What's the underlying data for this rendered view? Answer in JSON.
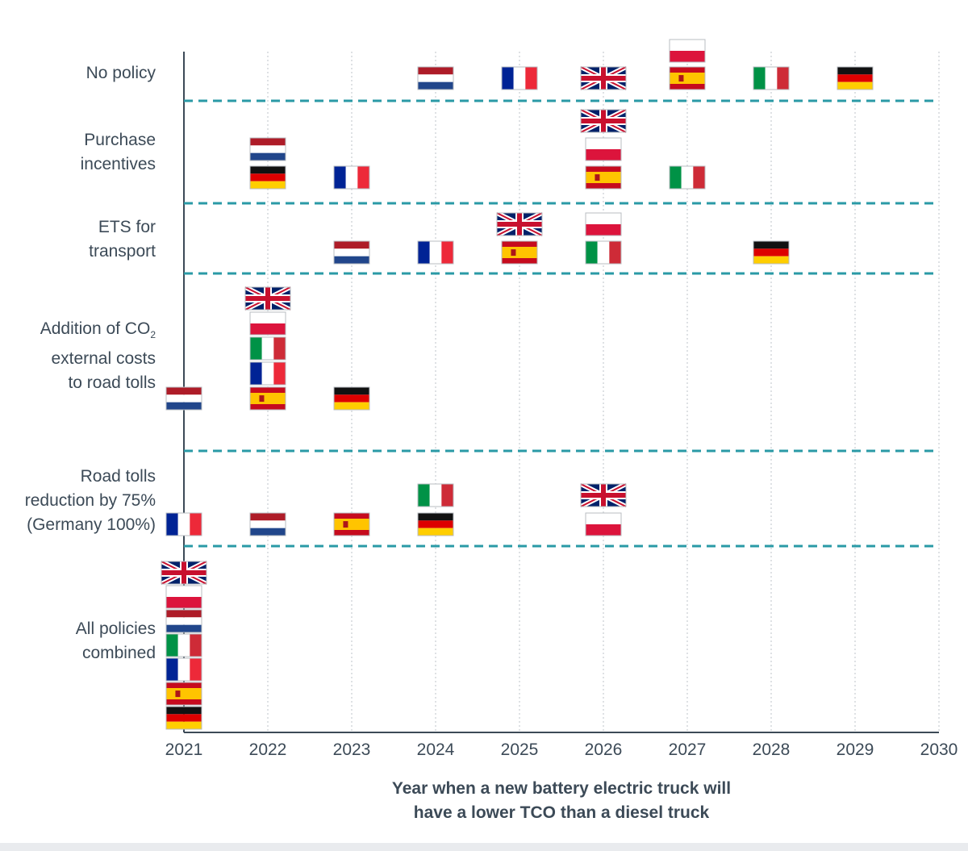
{
  "chart_data": {
    "type": "scatter",
    "title": "",
    "xlabel_lines": [
      "Year when a new battery electric truck will",
      "have a lower TCO than a diesel truck"
    ],
    "x_ticks": [
      "2021",
      "2022",
      "2023",
      "2024",
      "2025",
      "2026",
      "2027",
      "2028",
      "2029",
      "2030"
    ],
    "xlim": [
      2021,
      2030
    ],
    "grid": "vertical dotted lines at each year; dashed teal separators between scenarios",
    "colors": {
      "separator": "#2a9aa6",
      "axis": "#3c4a57",
      "grid": "#c9cdd2"
    },
    "rows": [
      {
        "label_lines": [
          "No policy"
        ],
        "points": [
          {
            "country": "Netherlands",
            "flag": "nl",
            "year": 2024
          },
          {
            "country": "France",
            "flag": "fr",
            "year": 2025
          },
          {
            "country": "United Kingdom",
            "flag": "uk",
            "year": 2026
          },
          {
            "country": "Poland",
            "flag": "pl",
            "year": 2027
          },
          {
            "country": "Spain",
            "flag": "es",
            "year": 2027
          },
          {
            "country": "Italy",
            "flag": "it",
            "year": 2028
          },
          {
            "country": "Germany",
            "flag": "de",
            "year": 2029
          }
        ]
      },
      {
        "label_lines": [
          "Purchase",
          "incentives"
        ],
        "points": [
          {
            "country": "Netherlands",
            "flag": "nl",
            "year": 2022
          },
          {
            "country": "Germany",
            "flag": "de",
            "year": 2022
          },
          {
            "country": "France",
            "flag": "fr",
            "year": 2023
          },
          {
            "country": "United Kingdom",
            "flag": "uk",
            "year": 2026
          },
          {
            "country": "Poland",
            "flag": "pl",
            "year": 2026
          },
          {
            "country": "Spain",
            "flag": "es",
            "year": 2026
          },
          {
            "country": "Italy",
            "flag": "it",
            "year": 2027
          }
        ]
      },
      {
        "label_lines": [
          "ETS for",
          "transport"
        ],
        "points": [
          {
            "country": "Netherlands",
            "flag": "nl",
            "year": 2023
          },
          {
            "country": "France",
            "flag": "fr",
            "year": 2024
          },
          {
            "country": "United Kingdom",
            "flag": "uk",
            "year": 2025
          },
          {
            "country": "Spain",
            "flag": "es",
            "year": 2025
          },
          {
            "country": "Poland",
            "flag": "pl",
            "year": 2026
          },
          {
            "country": "Italy",
            "flag": "it",
            "year": 2026
          },
          {
            "country": "Germany",
            "flag": "de",
            "year": 2028
          }
        ]
      },
      {
        "label_lines": [
          "Addition of CO",
          "external costs",
          "to road tolls"
        ],
        "label_subscript": "2",
        "points": [
          {
            "country": "Netherlands",
            "flag": "nl",
            "year": 2021
          },
          {
            "country": "United Kingdom",
            "flag": "uk",
            "year": 2022
          },
          {
            "country": "Poland",
            "flag": "pl",
            "year": 2022
          },
          {
            "country": "Italy",
            "flag": "it",
            "year": 2022
          },
          {
            "country": "France",
            "flag": "fr",
            "year": 2022
          },
          {
            "country": "Spain",
            "flag": "es",
            "year": 2022
          },
          {
            "country": "Germany",
            "flag": "de",
            "year": 2023
          }
        ]
      },
      {
        "label_lines": [
          "Road tolls",
          "reduction by 75%",
          "(Germany 100%)"
        ],
        "points": [
          {
            "country": "France",
            "flag": "fr",
            "year": 2021
          },
          {
            "country": "Netherlands",
            "flag": "nl",
            "year": 2022
          },
          {
            "country": "Spain",
            "flag": "es",
            "year": 2023
          },
          {
            "country": "Italy",
            "flag": "it",
            "year": 2024
          },
          {
            "country": "Germany",
            "flag": "de",
            "year": 2024
          },
          {
            "country": "United Kingdom",
            "flag": "uk",
            "year": 2026
          },
          {
            "country": "Poland",
            "flag": "pl",
            "year": 2026
          }
        ]
      },
      {
        "label_lines": [
          "All policies",
          "combined"
        ],
        "points": [
          {
            "country": "United Kingdom",
            "flag": "uk",
            "year": 2021
          },
          {
            "country": "Poland",
            "flag": "pl",
            "year": 2021
          },
          {
            "country": "Netherlands",
            "flag": "nl",
            "year": 2021
          },
          {
            "country": "Italy",
            "flag": "it",
            "year": 2021
          },
          {
            "country": "France",
            "flag": "fr",
            "year": 2021
          },
          {
            "country": "Spain",
            "flag": "es",
            "year": 2021
          },
          {
            "country": "Germany",
            "flag": "de",
            "year": 2021
          }
        ]
      }
    ]
  }
}
